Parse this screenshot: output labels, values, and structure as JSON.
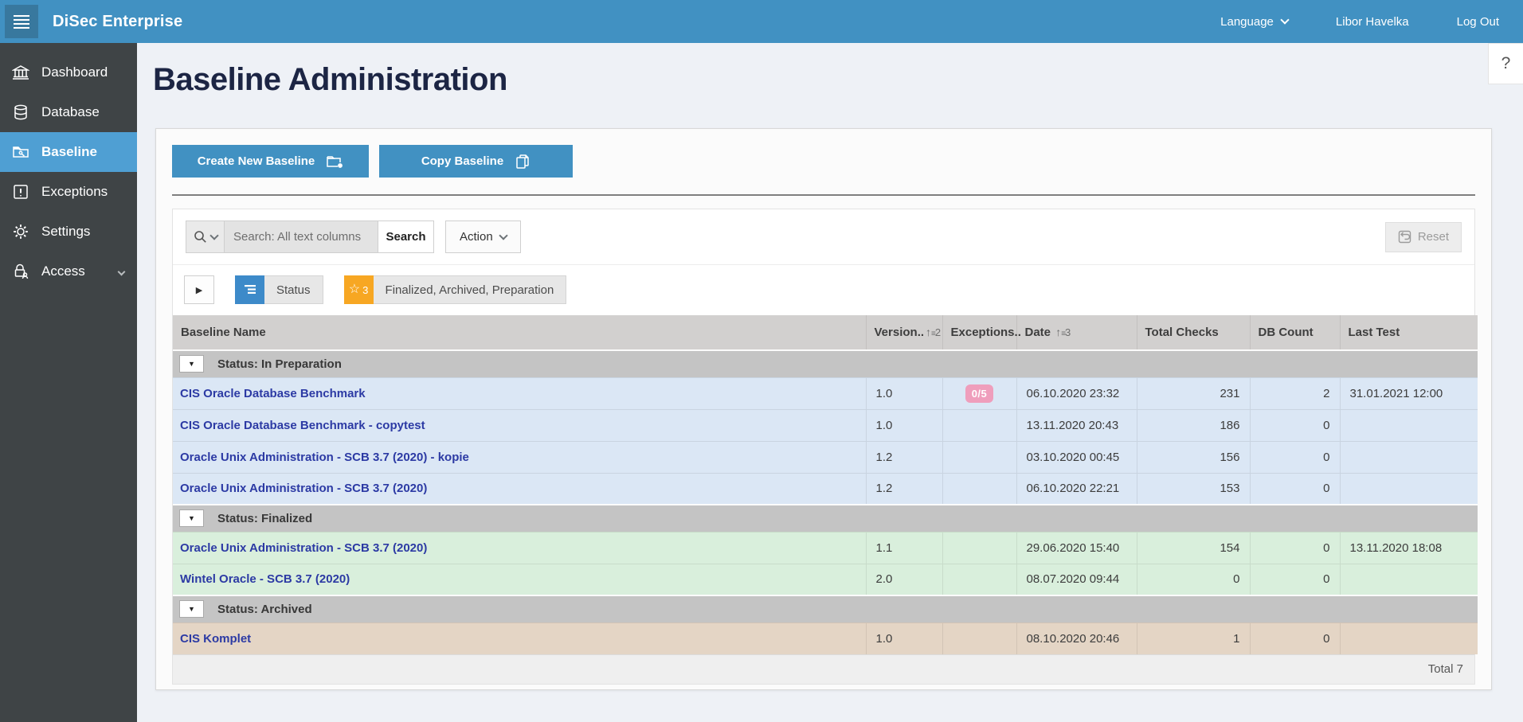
{
  "topbar": {
    "brand": "DiSec Enterprise",
    "language_label": "Language",
    "user_name": "Libor Havelka",
    "logout_label": "Log Out"
  },
  "help": {
    "label": "?"
  },
  "sidebar": {
    "items": [
      {
        "label": "Dashboard",
        "icon": "bank-icon"
      },
      {
        "label": "Database",
        "icon": "database-icon"
      },
      {
        "label": "Baseline",
        "icon": "folder-wrench-icon",
        "active": true
      },
      {
        "label": "Exceptions",
        "icon": "exclamation-square-icon"
      },
      {
        "label": "Settings",
        "icon": "gear-icon"
      },
      {
        "label": "Access",
        "icon": "lock-user-icon",
        "has_submenu": true
      }
    ]
  },
  "page": {
    "title": "Baseline Administration"
  },
  "actions": {
    "create_label": "Create New Baseline",
    "copy_label": "Copy Baseline"
  },
  "toolbar": {
    "search_placeholder": "Search: All text columns",
    "search_button": "Search",
    "action_button": "Action",
    "reset_button": "Reset"
  },
  "filters": {
    "break_label": "Status",
    "star_count": "3",
    "star_label": "Finalized, Archived, Preparation"
  },
  "table": {
    "columns": [
      {
        "label": "Baseline Name"
      },
      {
        "label": "Version..",
        "sort": "2"
      },
      {
        "label": "Exceptions.."
      },
      {
        "label": "Date",
        "sort": "3"
      },
      {
        "label": "Total Checks"
      },
      {
        "label": "DB Count"
      },
      {
        "label": "Last Test"
      }
    ],
    "groups": [
      {
        "label": "Status: In Preparation",
        "row_class": "prep",
        "rows": [
          {
            "name": "CIS Oracle Database Benchmark",
            "version": "1.0",
            "exceptions": "0/5",
            "date": "06.10.2020 23:32",
            "total_checks": "231",
            "db_count": "2",
            "last_test": "31.01.2021 12:00"
          },
          {
            "name": "CIS Oracle Database Benchmark - copytest",
            "version": "1.0",
            "exceptions": "",
            "date": "13.11.2020 20:43",
            "total_checks": "186",
            "db_count": "0",
            "last_test": ""
          },
          {
            "name": "Oracle Unix Administration - SCB 3.7 (2020) - kopie",
            "version": "1.2",
            "exceptions": "",
            "date": "03.10.2020 00:45",
            "total_checks": "156",
            "db_count": "0",
            "last_test": ""
          },
          {
            "name": "Oracle Unix Administration - SCB 3.7 (2020)",
            "version": "1.2",
            "exceptions": "",
            "date": "06.10.2020 22:21",
            "total_checks": "153",
            "db_count": "0",
            "last_test": ""
          }
        ]
      },
      {
        "label": "Status: Finalized",
        "row_class": "final",
        "rows": [
          {
            "name": "Oracle Unix Administration - SCB 3.7 (2020)",
            "version": "1.1",
            "exceptions": "",
            "date": "29.06.2020 15:40",
            "total_checks": "154",
            "db_count": "0",
            "last_test": "13.11.2020 18:08"
          },
          {
            "name": "Wintel Oracle - SCB 3.7 (2020)",
            "version": "2.0",
            "exceptions": "",
            "date": "08.07.2020 09:44",
            "total_checks": "0",
            "db_count": "0",
            "last_test": ""
          }
        ]
      },
      {
        "label": "Status: Archived",
        "row_class": "arch",
        "rows": [
          {
            "name": "CIS Komplet",
            "version": "1.0",
            "exceptions": "",
            "date": "08.10.2020 20:46",
            "total_checks": "1",
            "db_count": "0",
            "last_test": ""
          }
        ]
      }
    ],
    "footer_total": "Total 7"
  },
  "colors": {
    "accent_blue": "#4191c2",
    "active_nav_blue": "#4f9fd3",
    "sidebar_dark": "#3f4446",
    "star_orange": "#f7a723",
    "badge_pink": "#ef9ebc",
    "row_preparation": "#dbe7f5",
    "row_finalized": "#d9efdc",
    "row_archived": "#e4d5c5",
    "heading_navy": "#1c2544"
  }
}
